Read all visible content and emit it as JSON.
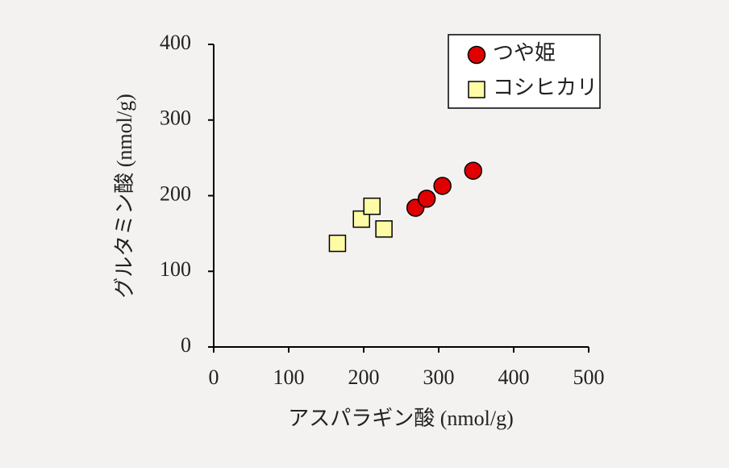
{
  "chart_data": {
    "type": "scatter",
    "x_label": "アスパラギン酸 (nmol/g)",
    "y_label": "グルタミン酸 (nmol/g)",
    "xlim": [
      0,
      500
    ],
    "xticks": [
      0,
      100,
      200,
      300,
      400,
      500
    ],
    "ylim": [
      0,
      400
    ],
    "yticks": [
      0,
      100,
      200,
      300,
      400
    ],
    "legend": "upper right",
    "series": [
      {
        "name": "つや姫",
        "color": "#e00000",
        "marker": "circle",
        "x": [
          269,
          284,
          305,
          346
        ],
        "y": [
          184,
          196,
          213,
          233
        ]
      },
      {
        "name": "コシヒカリ",
        "color": "#fdfba6",
        "marker": "square",
        "x": [
          165,
          197,
          211,
          227
        ],
        "y": [
          137,
          169,
          186,
          156
        ]
      }
    ]
  }
}
